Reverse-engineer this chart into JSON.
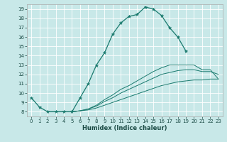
{
  "xlabel": "Humidex (Indice chaleur)",
  "bg_color": "#c8e8e8",
  "grid_color": "#ffffff",
  "line_color": "#1a7a6e",
  "xlim": [
    -0.5,
    23.5
  ],
  "ylim": [
    7.5,
    19.5
  ],
  "yticks": [
    8,
    9,
    10,
    11,
    12,
    13,
    14,
    15,
    16,
    17,
    18,
    19
  ],
  "xticks": [
    0,
    1,
    2,
    3,
    4,
    5,
    6,
    7,
    8,
    9,
    10,
    11,
    12,
    13,
    14,
    15,
    16,
    17,
    18,
    19,
    20,
    21,
    22,
    23
  ],
  "main_x": [
    0,
    1,
    2,
    3,
    4,
    5,
    6,
    7,
    8,
    9,
    10,
    11,
    12,
    13,
    14,
    15,
    16,
    17,
    18,
    19
  ],
  "main_y": [
    9.5,
    8.5,
    8.0,
    8.0,
    8.0,
    8.0,
    9.5,
    11.0,
    13.0,
    14.3,
    16.3,
    17.5,
    18.2,
    18.4,
    19.2,
    19.0,
    18.3,
    17.0,
    16.0,
    14.5
  ],
  "line1_x": [
    2,
    3,
    4,
    5,
    6,
    7,
    8,
    9,
    10,
    11,
    12,
    13,
    14,
    15,
    16,
    17,
    18,
    19,
    20,
    21,
    22,
    23
  ],
  "line1_y": [
    8.0,
    8.0,
    8.0,
    8.0,
    8.1,
    8.2,
    8.4,
    8.7,
    9.0,
    9.3,
    9.6,
    9.9,
    10.2,
    10.5,
    10.8,
    11.0,
    11.2,
    11.3,
    11.4,
    11.4,
    11.5,
    11.5
  ],
  "line2_x": [
    2,
    3,
    4,
    5,
    6,
    7,
    8,
    9,
    10,
    11,
    12,
    13,
    14,
    15,
    16,
    17,
    18,
    19,
    20,
    21,
    22,
    23
  ],
  "line2_y": [
    8.0,
    8.0,
    8.0,
    8.0,
    8.1,
    8.3,
    8.6,
    9.1,
    9.5,
    10.0,
    10.4,
    10.8,
    11.2,
    11.6,
    12.0,
    12.2,
    12.4,
    12.5,
    12.5,
    12.3,
    12.3,
    12.0
  ],
  "line3_x": [
    2,
    3,
    4,
    5,
    6,
    7,
    8,
    9,
    10,
    11,
    12,
    13,
    14,
    15,
    16,
    17,
    18,
    19,
    20,
    21,
    22,
    23
  ],
  "line3_y": [
    8.0,
    8.0,
    8.0,
    8.0,
    8.1,
    8.3,
    8.7,
    9.3,
    9.8,
    10.4,
    10.8,
    11.3,
    11.8,
    12.3,
    12.7,
    13.0,
    13.0,
    13.0,
    13.0,
    12.5,
    12.5,
    11.5
  ]
}
